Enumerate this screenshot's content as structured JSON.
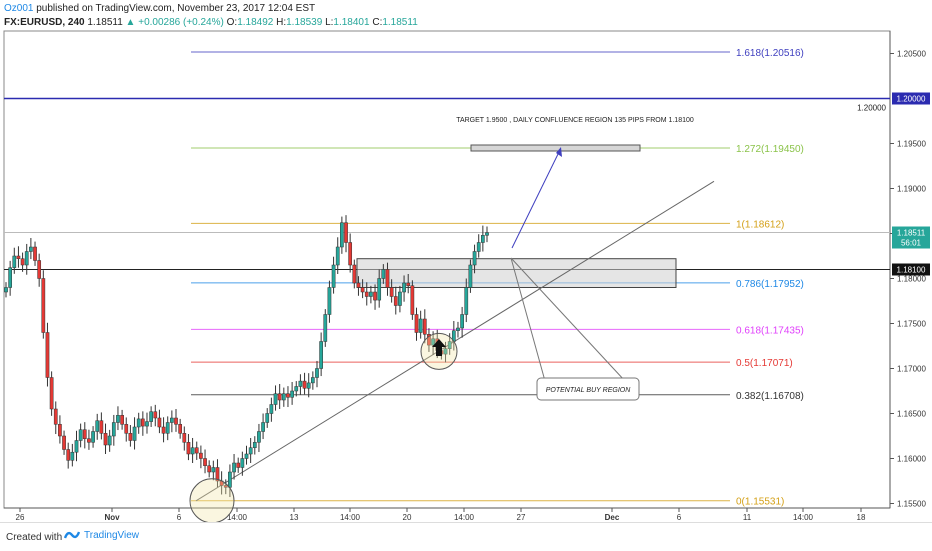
{
  "header": {
    "author": "Oz001",
    "published": "published on TradingView.com, November 23, 2017 12:04 EST",
    "symbol": "FX:EURUSD, 240",
    "last": "1.18511",
    "change": "▲ +0.00286 (+0.24%)",
    "o_label": "O:",
    "o": "1.18492",
    "h_label": "H:",
    "h": "1.18539",
    "l_label": "L:",
    "l": "1.18401",
    "c_label": "C:",
    "c": "1.18511"
  },
  "footer": {
    "created_with": "Created with",
    "brand": "TradingView"
  },
  "colors": {
    "up": "#26a69a",
    "down": "#e53935",
    "fib_top": "#3f3fbf",
    "level_line": "#2b2bb0"
  },
  "chart_data": {
    "type": "candlestick",
    "symbol": "FX:EURUSD",
    "interval": "240",
    "ylim": [
      1.1545,
      1.2075
    ],
    "x_tick_labels": [
      "26",
      "Nov",
      "6",
      "14:00",
      "13",
      "14:00",
      "20",
      "14:00",
      "27",
      "Dec",
      "6",
      "11",
      "14:00",
      "18"
    ],
    "y_tick_labels": [
      "1.15500",
      "1.16000",
      "1.16500",
      "1.17000",
      "1.17500",
      "1.18000",
      "1.18500",
      "1.19000",
      "1.19500",
      "1.20500"
    ],
    "price_badges": [
      {
        "label": "1.20000",
        "value": 1.2,
        "badge": "1.20000"
      },
      {
        "label": "1.18511",
        "value": 1.18511,
        "sub": "56:01"
      },
      {
        "label": "1.18100",
        "value": 1.181
      }
    ],
    "fib_levels": [
      {
        "label": "1.618(1.20516)",
        "value": 1.20516,
        "color": "#3f3fbf"
      },
      {
        "label": "1.272(1.19450)",
        "value": 1.1945,
        "color": "#8bc34a"
      },
      {
        "label": "1(1.18612)",
        "value": 1.18612,
        "color": "#d4a017"
      },
      {
        "label": "0.786(1.17952)",
        "value": 1.17952,
        "color": "#1e88e5"
      },
      {
        "label": "0.618(1.17435)",
        "value": 1.17435,
        "color": "#e040fb"
      },
      {
        "label": "0.5(1.17071)",
        "value": 1.17071,
        "color": "#e53935"
      },
      {
        "label": "0.382(1.16708)",
        "value": 1.16708,
        "color": "#333333"
      },
      {
        "label": "0(1.15531)",
        "value": 1.15531,
        "color": "#d4a017"
      }
    ],
    "annotations": [
      {
        "text": "TARGET 1.9500 , DAILY CONFLUENCE REGION 135 PIPS FROM 1.18100"
      },
      {
        "text": "POTENTIAL BUY REGION"
      }
    ],
    "closes": [
      1.179,
      1.1812,
      1.1825,
      1.1822,
      1.1815,
      1.183,
      1.1835,
      1.182,
      1.18,
      1.174,
      1.169,
      1.1655,
      1.1638,
      1.1625,
      1.161,
      1.1598,
      1.1607,
      1.162,
      1.1632,
      1.1622,
      1.1618,
      1.163,
      1.1642,
      1.1628,
      1.1615,
      1.1625,
      1.164,
      1.1648,
      1.1638,
      1.1628,
      1.162,
      1.1635,
      1.1644,
      1.1636,
      1.1641,
      1.1652,
      1.1645,
      1.1635,
      1.1628,
      1.164,
      1.1645,
      1.1638,
      1.1628,
      1.1618,
      1.1605,
      1.1612,
      1.1606,
      1.16,
      1.1592,
      1.1585,
      1.159,
      1.1575,
      1.157,
      1.1568,
      1.1585,
      1.1595,
      1.159,
      1.16,
      1.1605,
      1.1612,
      1.1618,
      1.163,
      1.164,
      1.165,
      1.166,
      1.1672,
      1.1665,
      1.1672,
      1.1668,
      1.1675,
      1.168,
      1.1686,
      1.1678,
      1.1684,
      1.169,
      1.17,
      1.173,
      1.176,
      1.179,
      1.1815,
      1.1835,
      1.1862,
      1.184,
      1.1815,
      1.1795,
      1.179,
      1.1785,
      1.178,
      1.1785,
      1.1776,
      1.18,
      1.181,
      1.179,
      1.178,
      1.177,
      1.1785,
      1.1795,
      1.1792,
      1.176,
      1.174,
      1.1755,
      1.1738,
      1.1726,
      1.1733,
      1.172,
      1.1716,
      1.1722,
      1.173,
      1.1742,
      1.1745,
      1.176,
      1.179,
      1.1815,
      1.183,
      1.184,
      1.1848,
      1.1851
    ]
  }
}
